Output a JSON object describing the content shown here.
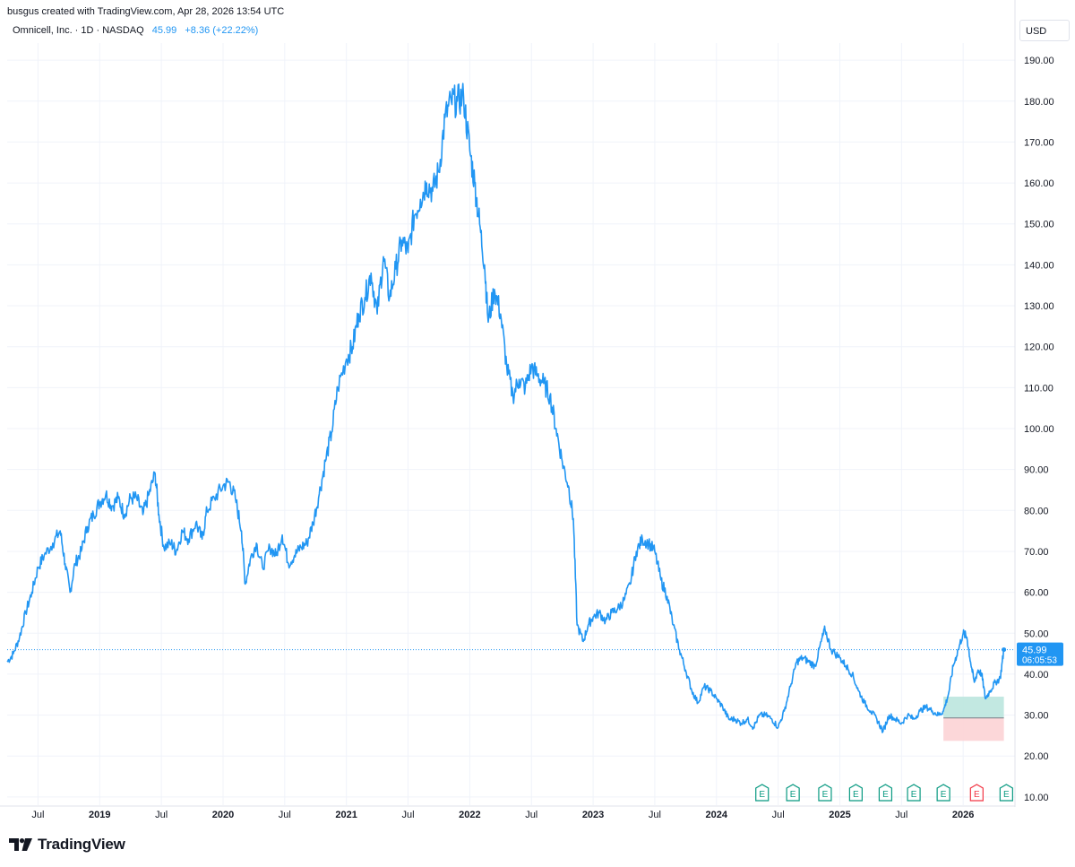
{
  "header": {
    "credit": "busgus created with TradingView.com, Apr 28, 2026 13:54 UTC"
  },
  "legend": {
    "symbol": "Omnicell, Inc. · 1D · NASDAQ",
    "price": "45.99",
    "change": "+8.36 (+22.22%)"
  },
  "currency_button": "USD",
  "price_label": {
    "price": "45.99",
    "countdown": "06:05:53"
  },
  "brand": {
    "name": "TradingView"
  },
  "colors": {
    "line": "#2196f3",
    "grid": "#f0f3fa",
    "axis_text": "#131722",
    "earnings_green": "#089981",
    "earnings_red": "#f23645",
    "profit_zone": "#b7e4dc",
    "loss_zone": "#fcd3d5"
  },
  "chart_data": {
    "type": "line",
    "title": "Omnicell, Inc. · 1D · NASDAQ",
    "ylim": [
      10,
      190
    ],
    "y_ticks": [
      "190.00",
      "180.00",
      "170.00",
      "160.00",
      "150.00",
      "140.00",
      "130.00",
      "120.00",
      "110.00",
      "100.00",
      "90.00",
      "80.00",
      "70.00",
      "60.00",
      "50.00",
      "40.00",
      "30.00",
      "20.00",
      "10.00"
    ],
    "x_ticks": [
      {
        "label": "Jul",
        "t": 2018.5,
        "bold": false
      },
      {
        "label": "2019",
        "t": 2019.0,
        "bold": true
      },
      {
        "label": "Jul",
        "t": 2019.5,
        "bold": false
      },
      {
        "label": "2020",
        "t": 2020.0,
        "bold": true
      },
      {
        "label": "Jul",
        "t": 2020.5,
        "bold": false
      },
      {
        "label": "2021",
        "t": 2021.0,
        "bold": true
      },
      {
        "label": "Jul",
        "t": 2021.5,
        "bold": false
      },
      {
        "label": "2022",
        "t": 2022.0,
        "bold": true
      },
      {
        "label": "Jul",
        "t": 2022.5,
        "bold": false
      },
      {
        "label": "2023",
        "t": 2023.0,
        "bold": true
      },
      {
        "label": "Jul",
        "t": 2023.5,
        "bold": false
      },
      {
        "label": "2024",
        "t": 2024.0,
        "bold": true
      },
      {
        "label": "Jul",
        "t": 2024.5,
        "bold": false
      },
      {
        "label": "2025",
        "t": 2025.0,
        "bold": true
      },
      {
        "label": "Jul",
        "t": 2025.5,
        "bold": false
      },
      {
        "label": "2026",
        "t": 2026.0,
        "bold": true
      }
    ],
    "xlim": [
      2018.25,
      2026.42
    ],
    "last_price": 45.99,
    "series": [
      {
        "values": [
          [
            2018.25,
            43
          ],
          [
            2018.3,
            45
          ],
          [
            2018.35,
            49
          ],
          [
            2018.4,
            55
          ],
          [
            2018.45,
            60
          ],
          [
            2018.5,
            66
          ],
          [
            2018.55,
            69
          ],
          [
            2018.62,
            72
          ],
          [
            2018.68,
            75
          ],
          [
            2018.72,
            67
          ],
          [
            2018.76,
            60
          ],
          [
            2018.8,
            67
          ],
          [
            2018.85,
            70
          ],
          [
            2018.9,
            76
          ],
          [
            2018.95,
            79
          ],
          [
            2019.0,
            82
          ],
          [
            2019.05,
            84
          ],
          [
            2019.1,
            81
          ],
          [
            2019.15,
            83
          ],
          [
            2019.2,
            79
          ],
          [
            2019.25,
            83
          ],
          [
            2019.3,
            83
          ],
          [
            2019.35,
            79
          ],
          [
            2019.4,
            84
          ],
          [
            2019.45,
            89
          ],
          [
            2019.48,
            79
          ],
          [
            2019.52,
            71
          ],
          [
            2019.58,
            72
          ],
          [
            2019.62,
            70
          ],
          [
            2019.67,
            75
          ],
          [
            2019.72,
            73
          ],
          [
            2019.78,
            77
          ],
          [
            2019.83,
            73
          ],
          [
            2019.87,
            80
          ],
          [
            2019.93,
            83
          ],
          [
            2020.0,
            86
          ],
          [
            2020.05,
            87
          ],
          [
            2020.1,
            83
          ],
          [
            2020.15,
            75
          ],
          [
            2020.18,
            62
          ],
          [
            2020.22,
            68
          ],
          [
            2020.27,
            72
          ],
          [
            2020.32,
            66
          ],
          [
            2020.38,
            71
          ],
          [
            2020.43,
            69
          ],
          [
            2020.48,
            74
          ],
          [
            2020.53,
            67
          ],
          [
            2020.58,
            69
          ],
          [
            2020.63,
            71
          ],
          [
            2020.68,
            72
          ],
          [
            2020.73,
            77
          ],
          [
            2020.78,
            84
          ],
          [
            2020.83,
            92
          ],
          [
            2020.88,
            99
          ],
          [
            2020.93,
            110
          ],
          [
            2021.0,
            117
          ],
          [
            2021.05,
            120
          ],
          [
            2021.1,
            128
          ],
          [
            2021.15,
            132
          ],
          [
            2021.2,
            138
          ],
          [
            2021.25,
            128
          ],
          [
            2021.3,
            142
          ],
          [
            2021.35,
            132
          ],
          [
            2021.4,
            139
          ],
          [
            2021.45,
            146
          ],
          [
            2021.5,
            143
          ],
          [
            2021.55,
            152
          ],
          [
            2021.6,
            156
          ],
          [
            2021.65,
            160
          ],
          [
            2021.7,
            158
          ],
          [
            2021.75,
            163
          ],
          [
            2021.8,
            176
          ],
          [
            2021.85,
            180
          ],
          [
            2021.9,
            180
          ],
          [
            2021.95,
            181
          ],
          [
            2022.0,
            168
          ],
          [
            2022.04,
            160
          ],
          [
            2022.08,
            150
          ],
          [
            2022.12,
            140
          ],
          [
            2022.15,
            126
          ],
          [
            2022.2,
            134
          ],
          [
            2022.25,
            128
          ],
          [
            2022.3,
            115
          ],
          [
            2022.35,
            108
          ],
          [
            2022.4,
            112
          ],
          [
            2022.45,
            110
          ],
          [
            2022.5,
            115
          ],
          [
            2022.55,
            113
          ],
          [
            2022.6,
            111
          ],
          [
            2022.65,
            108
          ],
          [
            2022.7,
            100
          ],
          [
            2022.75,
            92
          ],
          [
            2022.8,
            86
          ],
          [
            2022.84,
            78
          ],
          [
            2022.87,
            52
          ],
          [
            2022.92,
            48
          ],
          [
            2022.96,
            52
          ],
          [
            2023.0,
            54
          ],
          [
            2023.05,
            55
          ],
          [
            2023.1,
            53
          ],
          [
            2023.15,
            55
          ],
          [
            2023.2,
            56
          ],
          [
            2023.25,
            58
          ],
          [
            2023.3,
            62
          ],
          [
            2023.35,
            70
          ],
          [
            2023.4,
            73
          ],
          [
            2023.45,
            72
          ],
          [
            2023.5,
            70
          ],
          [
            2023.55,
            63
          ],
          [
            2023.6,
            59
          ],
          [
            2023.65,
            52
          ],
          [
            2023.7,
            46
          ],
          [
            2023.75,
            41
          ],
          [
            2023.8,
            36
          ],
          [
            2023.85,
            33
          ],
          [
            2023.9,
            37
          ],
          [
            2023.95,
            36
          ],
          [
            2024.0,
            34
          ],
          [
            2024.05,
            32
          ],
          [
            2024.1,
            29
          ],
          [
            2024.15,
            29
          ],
          [
            2024.2,
            28
          ],
          [
            2024.25,
            29
          ],
          [
            2024.3,
            27
          ],
          [
            2024.35,
            30
          ],
          [
            2024.4,
            30
          ],
          [
            2024.45,
            29
          ],
          [
            2024.5,
            27
          ],
          [
            2024.55,
            31
          ],
          [
            2024.6,
            37
          ],
          [
            2024.65,
            43
          ],
          [
            2024.7,
            44
          ],
          [
            2024.75,
            43
          ],
          [
            2024.8,
            42
          ],
          [
            2024.85,
            48
          ],
          [
            2024.88,
            51
          ],
          [
            2024.93,
            46
          ],
          [
            2025.0,
            44
          ],
          [
            2025.05,
            42
          ],
          [
            2025.1,
            40
          ],
          [
            2025.15,
            36
          ],
          [
            2025.2,
            33
          ],
          [
            2025.25,
            31
          ],
          [
            2025.3,
            29
          ],
          [
            2025.35,
            26
          ],
          [
            2025.4,
            30
          ],
          [
            2025.45,
            29
          ],
          [
            2025.5,
            28
          ],
          [
            2025.55,
            30
          ],
          [
            2025.6,
            29
          ],
          [
            2025.65,
            31
          ],
          [
            2025.7,
            32
          ],
          [
            2025.75,
            31
          ],
          [
            2025.8,
            30
          ],
          [
            2025.84,
            31
          ],
          [
            2025.88,
            35
          ],
          [
            2025.92,
            42
          ],
          [
            2025.96,
            46
          ],
          [
            2026.0,
            50
          ],
          [
            2026.03,
            49
          ],
          [
            2026.06,
            43
          ],
          [
            2026.09,
            38
          ],
          [
            2026.12,
            41
          ],
          [
            2026.15,
            40
          ],
          [
            2026.18,
            34
          ],
          [
            2026.22,
            36
          ],
          [
            2026.26,
            38
          ],
          [
            2026.3,
            39
          ],
          [
            2026.33,
            45.99
          ]
        ]
      }
    ],
    "position_box": {
      "x_start": 2025.84,
      "x_end": 2026.33,
      "target": 34.5,
      "entry": 29.3,
      "stop": 23.7
    },
    "earnings_markers": [
      {
        "t": 2024.37,
        "label": "E",
        "kind": "green"
      },
      {
        "t": 2024.62,
        "label": "E",
        "kind": "green"
      },
      {
        "t": 2024.88,
        "label": "E",
        "kind": "green"
      },
      {
        "t": 2025.13,
        "label": "E",
        "kind": "green"
      },
      {
        "t": 2025.37,
        "label": "E",
        "kind": "green"
      },
      {
        "t": 2025.6,
        "label": "E",
        "kind": "green"
      },
      {
        "t": 2025.84,
        "label": "E",
        "kind": "green"
      },
      {
        "t": 2026.11,
        "label": "E",
        "kind": "red"
      },
      {
        "t": 2026.35,
        "label": "E",
        "kind": "green"
      }
    ]
  }
}
